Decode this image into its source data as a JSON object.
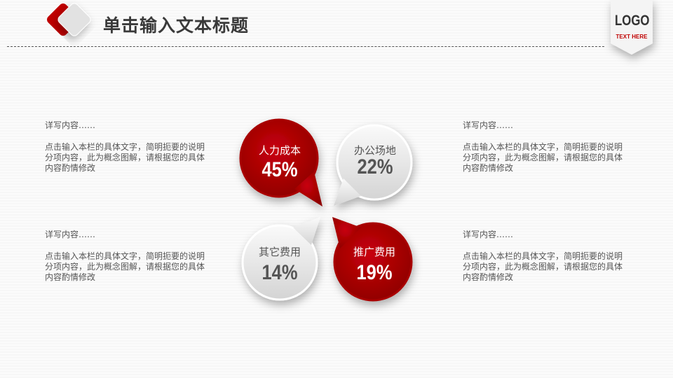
{
  "header": {
    "title": "单击输入文本标题"
  },
  "logo": {
    "text": "LOGO",
    "subtext": "TEXT HERE"
  },
  "blocks": [
    {
      "heading": "详写内容……",
      "body": "点击输入本栏的具体文字，简明扼要的说明分项内容，此为概念图解，请根据您的具体内容酌情修改"
    },
    {
      "heading": "详写内容……",
      "body": "点击输入本栏的具体文字，简明扼要的说明分项内容，此为概念图解，请根据您的具体内容酌情修改"
    },
    {
      "heading": "详写内容……",
      "body": "点击输入本栏的具体文字，简明扼要的说明分项内容，此为概念图解，请根据您的具体内容酌情修改"
    },
    {
      "heading": "详写内容……",
      "body": "点击输入本栏的具体文字，简明扼要的说明分项内容，此为概念图解，请根据您的具体内容酌情修改"
    }
  ],
  "bubbles": [
    {
      "label": "人力成本",
      "value": "45%",
      "color": "#c00000"
    },
    {
      "label": "办公场地",
      "value": "22%",
      "color": "#e6e6e6"
    },
    {
      "label": "其它费用",
      "value": "14%",
      "color": "#e6e6e6"
    },
    {
      "label": "推广费用",
      "value": "19%",
      "color": "#c00000"
    }
  ]
}
